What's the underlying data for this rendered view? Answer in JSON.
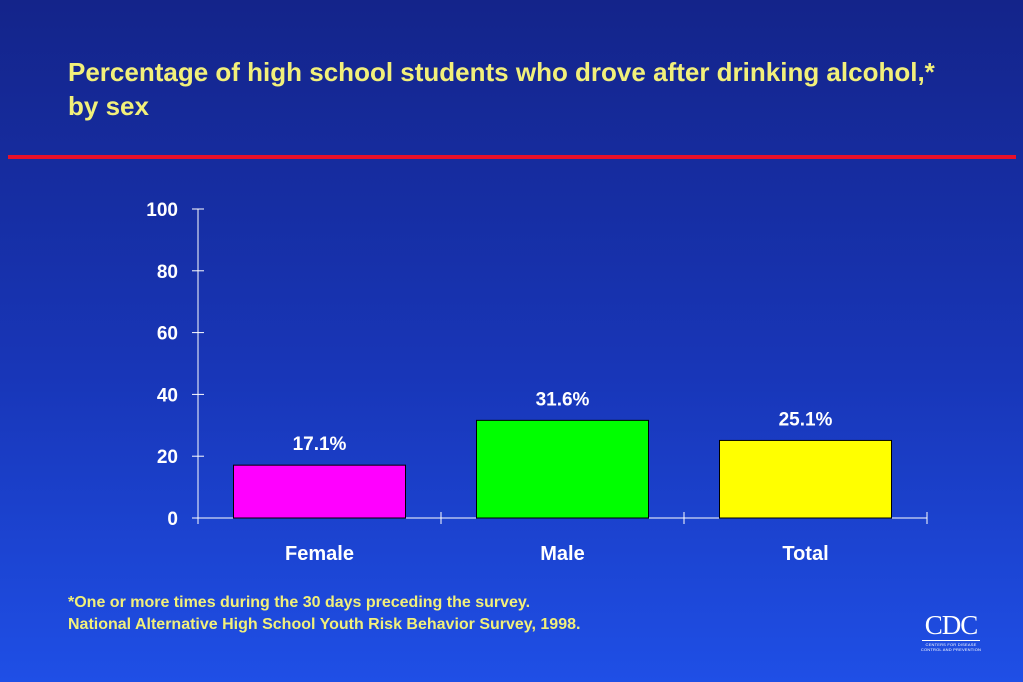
{
  "slide": {
    "title": "Percentage of high school students who drove after drinking alcohol,* by sex",
    "footnote_1": "*One or more times during the 30 days preceding the survey.",
    "footnote_2": "National Alternative High School Youth Risk Behavior Survey, 1998.",
    "logo_text": "CDC",
    "logo_subtext": "CENTERS FOR DISEASE CONTROL AND PREVENTION",
    "colors": {
      "title_text": "#f2f07a",
      "rule": "#e8102a",
      "axis": "#ffffff"
    }
  },
  "chart_data": {
    "type": "bar",
    "categories": [
      "Female",
      "Male",
      "Total"
    ],
    "values": [
      17.1,
      31.6,
      25.1
    ],
    "value_labels": [
      "17.1%",
      "31.6%",
      "25.1%"
    ],
    "colors": [
      "#ff00ff",
      "#00ff00",
      "#ffff00"
    ],
    "ylim": [
      0,
      100
    ],
    "yticks": [
      0,
      20,
      40,
      60,
      80,
      100
    ],
    "grid": false,
    "legend": "none"
  }
}
